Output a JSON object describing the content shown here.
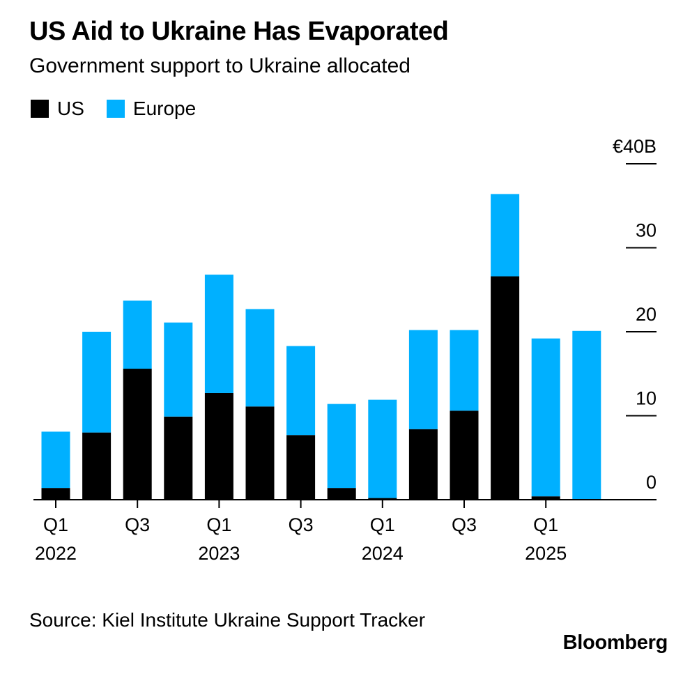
{
  "header": {
    "title": "US Aid to Ukraine Has Evaporated",
    "subtitle": "Government support to Ukraine allocated"
  },
  "legend": [
    {
      "label": "US",
      "color": "#000000"
    },
    {
      "label": "Europe",
      "color": "#00b0ff"
    }
  ],
  "footer": {
    "source": "Source: Kiel Institute Ukraine Support Tracker",
    "brand": "Bloomberg"
  },
  "chart_data": {
    "type": "bar",
    "stacked": true,
    "categories": [
      "Q1 2022",
      "Q2 2022",
      "Q3 2022",
      "Q4 2022",
      "Q1 2023",
      "Q2 2023",
      "Q3 2023",
      "Q4 2023",
      "Q1 2024",
      "Q2 2024",
      "Q3 2024",
      "Q4 2024",
      "Q1 2025",
      "Q2 2025"
    ],
    "x_tick_labels": [
      {
        "index": 0,
        "line1": "Q1",
        "line2": "2022"
      },
      {
        "index": 2,
        "line1": "Q3",
        "line2": ""
      },
      {
        "index": 4,
        "line1": "Q1",
        "line2": "2023"
      },
      {
        "index": 6,
        "line1": "Q3",
        "line2": ""
      },
      {
        "index": 8,
        "line1": "Q1",
        "line2": "2024"
      },
      {
        "index": 10,
        "line1": "Q3",
        "line2": ""
      },
      {
        "index": 12,
        "line1": "Q1",
        "line2": "2025"
      }
    ],
    "series": [
      {
        "name": "US",
        "color": "#000000",
        "values": [
          1.4,
          8.0,
          15.6,
          9.9,
          12.7,
          11.1,
          7.7,
          1.4,
          0.2,
          8.4,
          10.6,
          26.6,
          0.4,
          0.0
        ]
      },
      {
        "name": "Europe",
        "color": "#00b0ff",
        "values": [
          6.7,
          12.0,
          8.1,
          11.2,
          14.1,
          11.6,
          10.6,
          10.0,
          11.7,
          11.8,
          9.6,
          9.8,
          18.8,
          20.1
        ]
      }
    ],
    "ylim": [
      0,
      40
    ],
    "y_ticks": [
      {
        "value": 0,
        "label": "0"
      },
      {
        "value": 10,
        "label": "10"
      },
      {
        "value": 20,
        "label": "20"
      },
      {
        "value": 30,
        "label": "30"
      },
      {
        "value": 40,
        "label": "€40B"
      }
    ],
    "y_axis_side": "right"
  }
}
